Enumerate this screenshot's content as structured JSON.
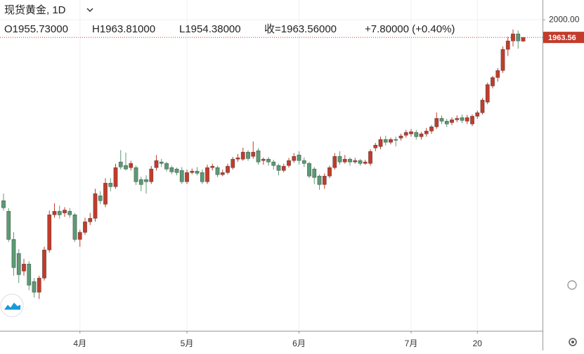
{
  "chart_data": {
    "type": "candlestick",
    "title": "现货黄金, 1D",
    "legend_texts": {
      "open": "O1955.73000",
      "high": "H1963.81000",
      "low": "L1954.38000",
      "close": "收=1963.56000",
      "change": "+7.80000 (+0.40%)"
    },
    "categories": [
      null,
      null,
      null,
      null,
      null,
      null,
      null,
      null,
      null,
      null,
      null,
      null,
      null,
      null,
      null,
      "4月",
      null,
      null,
      null,
      null,
      null,
      null,
      null,
      null,
      null,
      null,
      null,
      null,
      null,
      null,
      null,
      null,
      null,
      null,
      null,
      null,
      "5月",
      null,
      null,
      null,
      null,
      null,
      null,
      null,
      null,
      null,
      null,
      null,
      null,
      null,
      null,
      null,
      null,
      null,
      null,
      null,
      null,
      null,
      "6月",
      null,
      null,
      null,
      null,
      null,
      null,
      null,
      null,
      null,
      null,
      null,
      null,
      null,
      null,
      null,
      null,
      null,
      null,
      null,
      null,
      null,
      "7月",
      null,
      null,
      null,
      null,
      null,
      null,
      null,
      null,
      null,
      null,
      null,
      null,
      "20",
      null,
      null,
      null,
      null,
      null,
      null,
      null,
      null,
      null
    ],
    "open": [
      1625.4,
      1603.5,
      1545.2,
      1516.1,
      1479.6,
      1494.2,
      1457.8,
      1435.9,
      1465.1,
      1523.4,
      1596.2,
      1603.5,
      1600,
      1603.5,
      1596.2,
      1545.2,
      1559.8,
      1581.7,
      1588.9,
      1635.6,
      1618.1,
      1661.8,
      1654.5,
      1705.6,
      1698.3,
      1693.9,
      1693.9,
      1669.1,
      1669.1,
      1664.7,
      1693.9,
      1705.6,
      1702.6,
      1693.9,
      1691.0,
      1688.1,
      1664.7,
      1683.7,
      1686.6,
      1683.7,
      1664.7,
      1693.9,
      1693.9,
      1679.3,
      1683.7,
      1693.9,
      1711.4,
      1711.4,
      1726.0,
      1717.2,
      1728.9,
      1708.5,
      1711.4,
      1705.6,
      1698.3,
      1688.1,
      1698.3,
      1708.5,
      1720.1,
      1708.5,
      1702.6,
      1691.0,
      1676.4,
      1658.9,
      1676.4,
      1693.9,
      1717.2,
      1705.6,
      1711.4,
      1705.6,
      1708.5,
      1702.6,
      1702.6,
      1734.7,
      1737.6,
      1752.2,
      1746.4,
      1752.2,
      1755.1,
      1760.9,
      1763.8,
      1766.8,
      1758.0,
      1763.8,
      1769.7,
      1778.4,
      1795.9,
      1790.1,
      1787.2,
      1793.0,
      1797.4,
      1790.1,
      1784.3,
      1800.3,
      1807.6,
      1829.5,
      1863.0,
      1880.5,
      1895.0,
      1938.8,
      1956.3,
      1970.8,
      1955.73
    ],
    "high": [
      1640,
      1610,
      1560,
      1525,
      1505,
      1500,
      1465,
      1470,
      1530,
      1605,
      1620,
      1615,
      1612,
      1610,
      1600,
      1565,
      1590,
      1600,
      1650,
      1645,
      1672,
      1672,
      1702,
      1730,
      1725,
      1708,
      1698,
      1675,
      1678,
      1697,
      1720,
      1712,
      1706,
      1698,
      1694,
      1695,
      1690,
      1692,
      1695,
      1690,
      1700,
      1702,
      1698,
      1690,
      1702,
      1716,
      1722,
      1735,
      1730,
      1748,
      1734,
      1715,
      1716,
      1710,
      1702,
      1702,
      1714,
      1724,
      1728,
      1715,
      1706,
      1695,
      1680,
      1682,
      1698,
      1724,
      1728,
      1720,
      1715,
      1714,
      1712,
      1710,
      1732,
      1745,
      1758,
      1760,
      1756,
      1758,
      1764,
      1772,
      1774,
      1772,
      1768,
      1776,
      1782,
      1808,
      1802,
      1795,
      1798,
      1802,
      1804,
      1803,
      1804,
      1812,
      1838,
      1870,
      1884,
      1900,
      1945,
      1965,
      1980,
      1978,
      1963.81
    ],
    "low": [
      1605,
      1540,
      1470,
      1455,
      1470,
      1440,
      1425,
      1422,
      1460,
      1518,
      1590,
      1588,
      1592,
      1590,
      1540,
      1530,
      1555,
      1575,
      1582,
      1618,
      1612,
      1645,
      1650,
      1690,
      1688,
      1688,
      1658,
      1645,
      1640,
      1660,
      1688,
      1695,
      1686,
      1680,
      1678,
      1660,
      1660,
      1680,
      1678,
      1660,
      1660,
      1688,
      1674,
      1676,
      1680,
      1690,
      1706,
      1708,
      1708,
      1712,
      1700,
      1700,
      1698,
      1690,
      1678,
      1684,
      1694,
      1704,
      1700,
      1695,
      1672,
      1660,
      1648,
      1650,
      1672,
      1690,
      1700,
      1702,
      1698,
      1702,
      1698,
      1700,
      1698,
      1728,
      1732,
      1740,
      1742,
      1738,
      1750,
      1756,
      1758,
      1752,
      1752,
      1758,
      1764,
      1774,
      1784,
      1778,
      1782,
      1788,
      1786,
      1784,
      1780,
      1795,
      1804,
      1825,
      1858,
      1872,
      1890,
      1925,
      1945,
      1940,
      1954.38
    ],
    "close": [
      1610.8,
      1545.2,
      1486.9,
      1472.3,
      1494.2,
      1450.5,
      1435.9,
      1465.1,
      1523.4,
      1596.2,
      1603.5,
      1596.2,
      1606,
      1596.2,
      1545.2,
      1559.8,
      1581.7,
      1588.9,
      1640.0,
      1625.4,
      1661.8,
      1654.5,
      1693.9,
      1695.3,
      1691.0,
      1702.6,
      1664.7,
      1658.9,
      1664.7,
      1691.0,
      1708.5,
      1702.6,
      1691.0,
      1685.2,
      1683.7,
      1664.7,
      1683.7,
      1686.6,
      1682.2,
      1664.7,
      1693.9,
      1696.8,
      1679.3,
      1683.7,
      1696.8,
      1711.4,
      1714.3,
      1726.0,
      1712.8,
      1726.0,
      1705.6,
      1711.4,
      1705.6,
      1698.3,
      1688.1,
      1696.8,
      1708.5,
      1717.2,
      1708.5,
      1702.6,
      1676.4,
      1673.5,
      1658.9,
      1676.4,
      1693.9,
      1717.2,
      1705.6,
      1711.4,
      1705.6,
      1708.5,
      1702.6,
      1705.6,
      1727.4,
      1740.5,
      1752.2,
      1746.4,
      1752.2,
      1750.7,
      1759.5,
      1766.8,
      1768.2,
      1758.0,
      1763.8,
      1769.7,
      1778.4,
      1795.9,
      1790.1,
      1784.3,
      1793.0,
      1795.9,
      1791.6,
      1797.4,
      1800.3,
      1807.6,
      1833.8,
      1865.9,
      1880.5,
      1895.0,
      1938.8,
      1956.3,
      1970.8,
      1956.3,
      1963.56
    ],
    "colors": {
      "up": "#c33b2a",
      "down": "#5a9b74"
    },
    "ylim": [
      1356,
      2041
    ],
    "yticks": [
      {
        "value": 2000,
        "label": "2000.00"
      }
    ],
    "price_line": 1963.56,
    "grid": true
  }
}
